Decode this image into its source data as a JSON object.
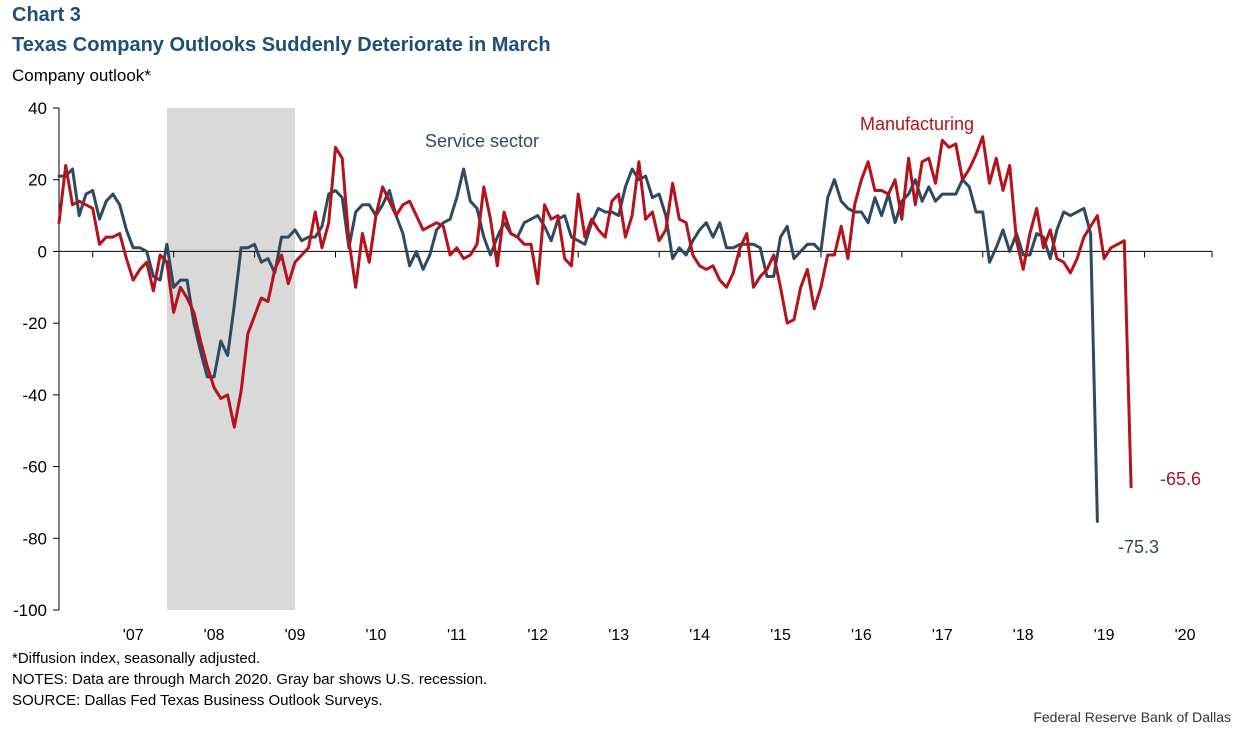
{
  "header": {
    "chart_number": "Chart 3",
    "title": "Texas Company Outlooks Suddenly Deteriorate in March",
    "y_unit_label": "Company outlook*"
  },
  "notes": {
    "footnote": "*Diffusion index, seasonally adjusted.",
    "notes_line": "NOTES: Data are through March 2020. Gray bar shows U.S. recession.",
    "source_line": "SOURCE: Dallas Fed Texas Business Outlook Surveys."
  },
  "credit": "Federal Reserve  Bank of Dallas",
  "colors": {
    "manufacturing": "#b5121b",
    "service": "#2e4a62",
    "recession": "#d9d9d9",
    "title": "#1f4e79"
  },
  "chart_data": {
    "type": "line",
    "title": "Texas Company Outlooks Suddenly Deteriorate in March",
    "ylabel": "Company outlook*",
    "ylim": [
      -100,
      40
    ],
    "yticks": [
      40,
      20,
      0,
      -20,
      -40,
      -60,
      -80,
      -100
    ],
    "xlim": [
      2006.583,
      2020.833
    ],
    "x_tick_labels": [
      "'07",
      "'08",
      "'09",
      "'10",
      "'11",
      "'12",
      "'13",
      "'14",
      "'15",
      "'16",
      "'17",
      "'18",
      "'19",
      "'20"
    ],
    "x_tick_years": [
      2007,
      2008,
      2009,
      2010,
      2011,
      2012,
      2013,
      2014,
      2015,
      2016,
      2017,
      2018,
      2019,
      2020
    ],
    "recession": {
      "start": 2007.917,
      "end": 2009.5
    },
    "start_year": 2006.583,
    "step": 0.0833333,
    "series": [
      {
        "name": "Manufacturing",
        "label": "Manufacturing",
        "values": [
          8,
          24,
          13,
          14,
          13,
          12,
          2,
          4,
          4,
          5,
          -2,
          -8,
          -5,
          -3,
          -11,
          -1,
          -3,
          -17,
          -10,
          -13,
          -17,
          -25,
          -32,
          -38,
          -41,
          -40,
          -49,
          -39,
          -23,
          -18,
          -13,
          -14,
          -5,
          -1,
          -9,
          -3,
          -1,
          1,
          11,
          1,
          8,
          29,
          26,
          3,
          -10,
          5,
          -3,
          10,
          18,
          14,
          10,
          13,
          14,
          10,
          6,
          7,
          8,
          7,
          -1,
          1,
          -2,
          -1,
          2,
          18,
          9,
          -4,
          11,
          5,
          4,
          2,
          2,
          -9,
          13,
          9,
          10,
          -2,
          -4,
          16,
          4,
          9,
          6,
          4,
          14,
          16,
          4,
          10,
          25,
          9,
          11,
          3,
          6,
          19,
          9,
          8,
          -1,
          -4,
          -5,
          -4,
          -8,
          -10,
          -6,
          1,
          5,
          -10,
          -7,
          -5,
          -1,
          -10,
          -20,
          -19,
          -10,
          -5,
          -16,
          -10,
          -1,
          -1,
          7,
          -2,
          13,
          20,
          25,
          17,
          17,
          16,
          20,
          9,
          26,
          13,
          25,
          26,
          19,
          31,
          29,
          30,
          20,
          23,
          27,
          32,
          19,
          26,
          17,
          24,
          3,
          -5,
          5,
          12,
          1,
          6,
          -2,
          -3,
          -6,
          -2,
          4,
          7,
          10,
          -2,
          1,
          2,
          3,
          -65.6
        ]
      },
      {
        "name": "Service sector",
        "label": "Service sector",
        "values": [
          21,
          21,
          23,
          10,
          16,
          17,
          9,
          14,
          16,
          13,
          6,
          1,
          1,
          0,
          -7,
          -8,
          2,
          -10,
          -8,
          -8,
          -20,
          -28,
          -35,
          -35,
          -25,
          -29,
          -15,
          1,
          1,
          2,
          -3,
          -2,
          -6,
          4,
          4,
          6,
          3,
          4,
          4,
          7,
          16,
          17,
          15,
          1,
          11,
          13,
          13,
          10,
          13,
          17,
          10,
          5,
          -4,
          0,
          -5,
          -1,
          6,
          8,
          9,
          15,
          23,
          14,
          12,
          4,
          -1,
          4,
          8,
          5,
          4,
          8,
          9,
          10,
          7,
          3,
          9,
          10,
          4,
          3,
          2,
          8,
          12,
          11,
          11,
          10,
          18,
          23,
          20,
          21,
          15,
          16,
          10,
          -2,
          1,
          -1,
          3,
          6,
          8,
          4,
          8,
          1,
          1,
          2,
          2,
          2,
          1,
          -7,
          -7,
          4,
          7,
          -2,
          0,
          2,
          2,
          0,
          15,
          20,
          14,
          12,
          11,
          11,
          8,
          15,
          10,
          16,
          8,
          14,
          16,
          20,
          14,
          18,
          14,
          16,
          16,
          16,
          20,
          18,
          11,
          11,
          -3,
          1,
          6,
          0,
          5,
          -1,
          -1,
          5,
          4,
          -2,
          6,
          11,
          10,
          11,
          12,
          5,
          -75.3
        ]
      }
    ],
    "annotations": [
      {
        "text": "-65.6",
        "series": "Manufacturing"
      },
      {
        "text": "-75.3",
        "series": "Service sector"
      }
    ]
  }
}
